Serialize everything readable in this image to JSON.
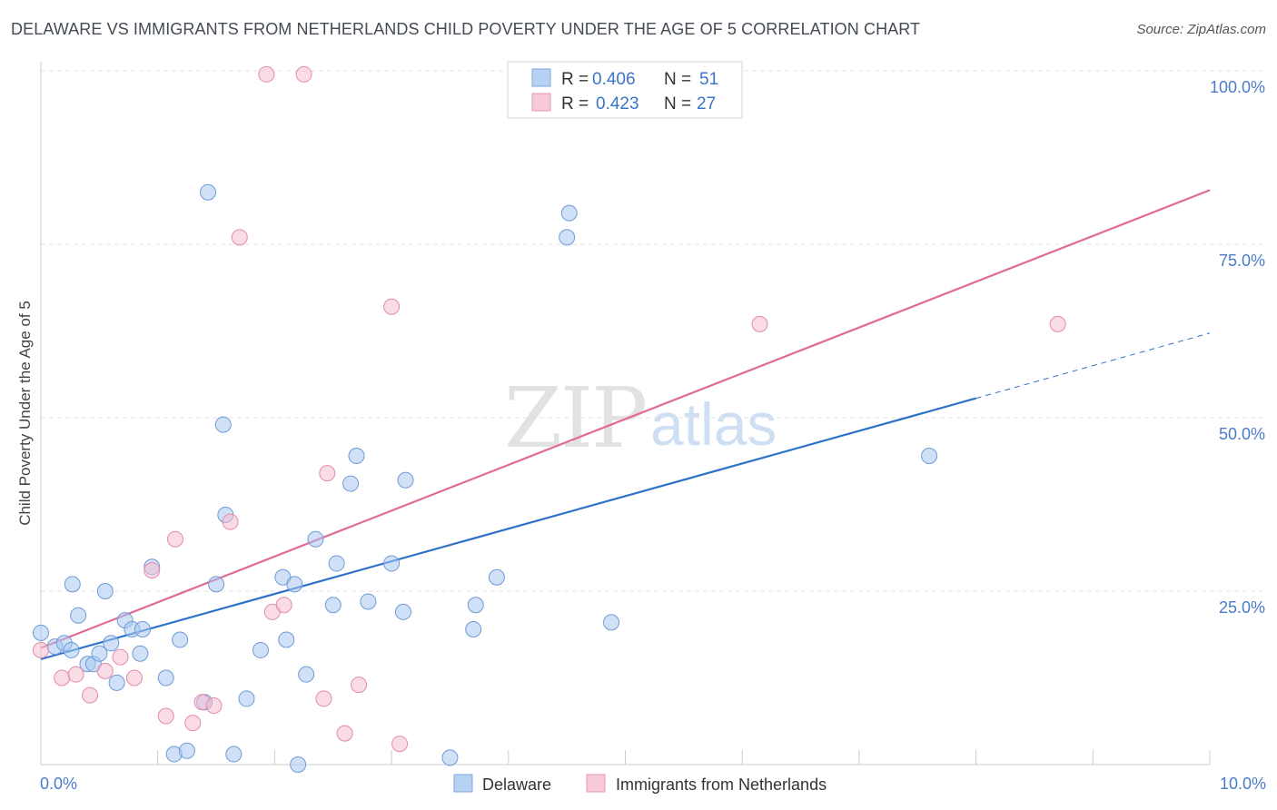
{
  "header": {
    "title": "DELAWARE VS IMMIGRANTS FROM NETHERLANDS CHILD POVERTY UNDER THE AGE OF 5 CORRELATION CHART",
    "source": "Source: ZipAtlas.com"
  },
  "watermark": {
    "zip": "ZIP",
    "atlas": "atlas"
  },
  "legend": {
    "items": [
      {
        "r_label": "R =",
        "r_value": "0.406",
        "n_label": "N =",
        "n_value": "51"
      },
      {
        "r_label": "R =",
        "r_value": "0.423",
        "n_label": "N =",
        "n_value": "27"
      }
    ]
  },
  "bottom_legend": {
    "delaware": "Delaware",
    "netherlands": "Immigrants from Netherlands"
  },
  "chart_data": {
    "type": "scatter",
    "title": "DELAWARE VS IMMIGRANTS FROM NETHERLANDS CHILD POVERTY UNDER THE AGE OF 5 CORRELATION CHART",
    "ylabel": "Child Poverty Under the Age of 5",
    "xlim": [
      0,
      10
    ],
    "ylim": [
      0,
      100
    ],
    "x_tick_labels": {
      "left": "0.0%",
      "right": "10.0%"
    },
    "y_ticks": [
      {
        "value": 25,
        "label": "25.0%"
      },
      {
        "value": 50,
        "label": "50.0%"
      },
      {
        "value": 75,
        "label": "75.0%"
      },
      {
        "value": 100,
        "label": "100.0%"
      }
    ],
    "grid": true,
    "legend_position": "top-center",
    "series": [
      {
        "name": "Delaware",
        "color": "#a9c8f0",
        "stroke": "#6f9ad6",
        "trend": {
          "x0": 0,
          "y0": 15.2,
          "x1": 8.0,
          "y1": 52.8,
          "dashed_to_x": 10,
          "dashed_to_y": 62.2,
          "color": "#2f72c9"
        },
        "points": [
          [
            0.0,
            19.0
          ],
          [
            0.12,
            17.0
          ],
          [
            0.2,
            17.5
          ],
          [
            0.26,
            16.5
          ],
          [
            0.27,
            26.0
          ],
          [
            0.32,
            21.5
          ],
          [
            0.4,
            14.5
          ],
          [
            0.45,
            14.5
          ],
          [
            0.5,
            16.0
          ],
          [
            0.55,
            25.0
          ],
          [
            0.6,
            17.5
          ],
          [
            0.65,
            11.8
          ],
          [
            0.72,
            20.8
          ],
          [
            0.78,
            19.5
          ],
          [
            0.85,
            16.0
          ],
          [
            0.87,
            19.5
          ],
          [
            0.95,
            28.5
          ],
          [
            1.07,
            12.5
          ],
          [
            1.14,
            1.5
          ],
          [
            1.19,
            18.0
          ],
          [
            1.25,
            2.0
          ],
          [
            1.4,
            9.0
          ],
          [
            1.43,
            82.5
          ],
          [
            1.5,
            26.0
          ],
          [
            1.56,
            49.0
          ],
          [
            1.58,
            36.0
          ],
          [
            1.65,
            1.5
          ],
          [
            1.76,
            9.5
          ],
          [
            1.88,
            16.5
          ],
          [
            2.07,
            27.0
          ],
          [
            2.1,
            18.0
          ],
          [
            2.17,
            26.0
          ],
          [
            2.2,
            0.0
          ],
          [
            2.27,
            13.0
          ],
          [
            2.35,
            32.5
          ],
          [
            2.5,
            23.0
          ],
          [
            2.53,
            29.0
          ],
          [
            2.65,
            40.5
          ],
          [
            2.7,
            44.5
          ],
          [
            2.8,
            23.5
          ],
          [
            3.0,
            29.0
          ],
          [
            3.1,
            22.0
          ],
          [
            3.12,
            41.0
          ],
          [
            3.5,
            1.0
          ],
          [
            3.7,
            19.5
          ],
          [
            3.72,
            23.0
          ],
          [
            3.9,
            27.0
          ],
          [
            4.5,
            76.0
          ],
          [
            4.52,
            79.5
          ],
          [
            4.88,
            20.5
          ],
          [
            7.6,
            44.5
          ]
        ]
      },
      {
        "name": "Immigrants from Netherlands",
        "color": "#f5c0d2",
        "stroke": "#e48aaa",
        "trend": {
          "x0": 0,
          "y0": 16.8,
          "x1": 10,
          "y1": 82.8,
          "color": "#e06a94"
        },
        "points": [
          [
            0.0,
            16.5
          ],
          [
            0.18,
            12.5
          ],
          [
            0.3,
            13.0
          ],
          [
            0.42,
            10.0
          ],
          [
            0.55,
            13.5
          ],
          [
            0.68,
            15.5
          ],
          [
            0.8,
            12.5
          ],
          [
            0.95,
            28.0
          ],
          [
            1.07,
            7.0
          ],
          [
            1.15,
            32.5
          ],
          [
            1.3,
            6.0
          ],
          [
            1.38,
            9.0
          ],
          [
            1.48,
            8.5
          ],
          [
            1.62,
            35.0
          ],
          [
            1.7,
            76.0
          ],
          [
            1.93,
            99.5
          ],
          [
            1.98,
            22.0
          ],
          [
            2.08,
            23.0
          ],
          [
            2.25,
            99.5
          ],
          [
            2.42,
            9.5
          ],
          [
            2.45,
            42.0
          ],
          [
            2.6,
            4.5
          ],
          [
            2.72,
            11.5
          ],
          [
            3.0,
            66.0
          ],
          [
            3.07,
            3.0
          ],
          [
            6.15,
            63.5
          ],
          [
            8.7,
            63.5
          ]
        ]
      }
    ]
  }
}
